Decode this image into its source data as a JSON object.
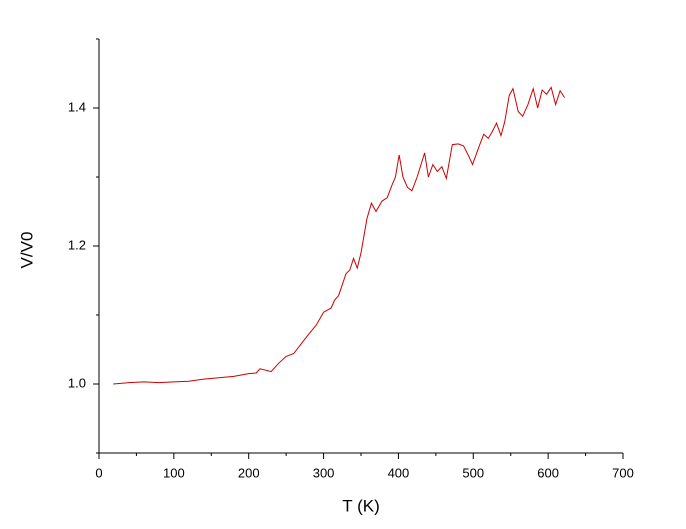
{
  "chart_data": {
    "type": "line",
    "xlabel": "T (K)",
    "ylabel": "V/V0",
    "xlim": [
      0,
      700
    ],
    "xticks": [
      0,
      100,
      200,
      300,
      400,
      500,
      600,
      700
    ],
    "xminorticks": [
      50,
      150,
      250,
      350,
      450,
      550,
      650
    ],
    "ylim": [
      0.9,
      1.5
    ],
    "yticks": [
      {
        "value": 1,
        "label": "1.0"
      },
      1.2,
      1.4
    ],
    "yminorticks": [
      0.9,
      1.1,
      1.3,
      1.5
    ],
    "x": [
      19,
      40,
      60,
      80,
      100,
      120,
      140,
      160,
      180,
      200,
      210,
      215,
      230,
      240,
      250,
      260,
      270,
      280,
      290,
      300,
      310,
      315,
      320,
      330,
      335,
      340,
      345,
      350,
      358,
      364,
      370,
      378,
      385,
      392,
      396,
      401,
      406,
      412,
      418,
      425,
      435,
      440,
      446,
      452,
      458,
      464,
      472,
      480,
      487,
      494,
      499,
      508,
      514,
      520,
      525,
      531,
      537,
      542,
      548,
      553,
      560,
      566,
      573,
      580,
      586,
      592,
      598,
      604,
      610,
      616,
      622
    ],
    "series": [
      {
        "color": "#cc0000",
        "values": [
          1.0,
          1.002,
          1.003,
          1.002,
          1.003,
          1.004,
          1.007,
          1.009,
          1.011,
          1.015,
          1.016,
          1.022,
          1.018,
          1.03,
          1.04,
          1.044,
          1.058,
          1.072,
          1.085,
          1.104,
          1.11,
          1.122,
          1.128,
          1.16,
          1.165,
          1.182,
          1.168,
          1.19,
          1.24,
          1.262,
          1.25,
          1.265,
          1.27,
          1.29,
          1.3,
          1.332,
          1.3,
          1.285,
          1.28,
          1.3,
          1.335,
          1.3,
          1.318,
          1.308,
          1.315,
          1.298,
          1.347,
          1.348,
          1.345,
          1.33,
          1.318,
          1.345,
          1.362,
          1.356,
          1.365,
          1.378,
          1.36,
          1.38,
          1.418,
          1.428,
          1.395,
          1.388,
          1.405,
          1.428,
          1.4,
          1.426,
          1.42,
          1.43,
          1.405,
          1.425,
          1.415
        ]
      }
    ]
  }
}
